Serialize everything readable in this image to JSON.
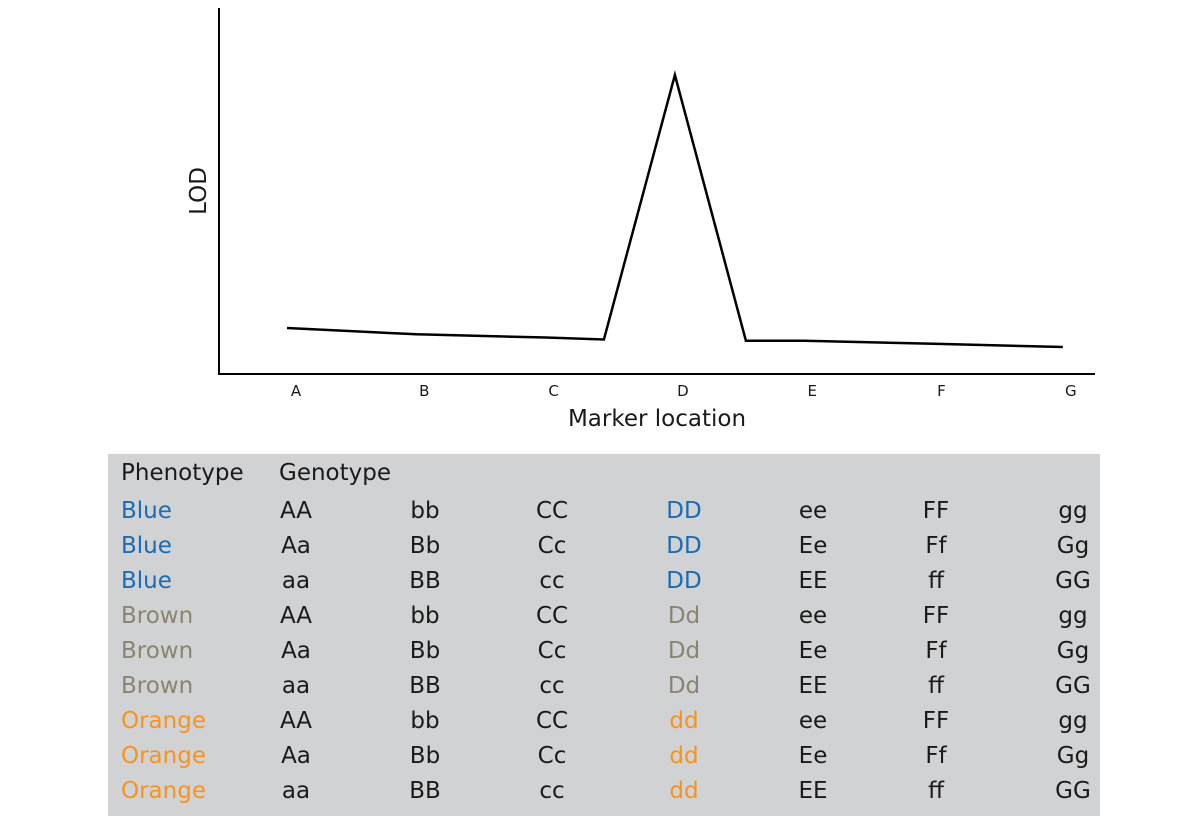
{
  "chart_data": {
    "type": "line",
    "xlabel": "Marker location",
    "ylabel": "LOD",
    "categories": [
      "A",
      "B",
      "C",
      "D",
      "E",
      "F",
      "G"
    ],
    "series": [
      {
        "values": [
          0.2,
          0.18,
          0.17,
          1.0,
          0.16,
          0.15,
          0.14
        ]
      }
    ],
    "ylim": [
      0,
      1.1
    ],
    "grid": false,
    "legend": "none"
  },
  "table": {
    "headers": {
      "phenotype": "Phenotype",
      "genotype": "Genotype"
    },
    "colors": {
      "Blue": "#1a6bb5",
      "Brown": "#8a8470",
      "Orange": "#f7931e",
      "default": "#1a1a1a"
    },
    "rows": [
      {
        "phenotype": "Blue",
        "genotypes": [
          "AA",
          "bb",
          "CC",
          "DD",
          "ee",
          "FF",
          "gg"
        ]
      },
      {
        "phenotype": "Blue",
        "genotypes": [
          "Aa",
          "Bb",
          "Cc",
          "DD",
          "Ee",
          "Ff",
          "Gg"
        ]
      },
      {
        "phenotype": "Blue",
        "genotypes": [
          "aa",
          "BB",
          "cc",
          "DD",
          "EE",
          "ff",
          "GG"
        ]
      },
      {
        "phenotype": "Brown",
        "genotypes": [
          "AA",
          "bb",
          "CC",
          "Dd",
          "ee",
          "FF",
          "gg"
        ]
      },
      {
        "phenotype": "Brown",
        "genotypes": [
          "Aa",
          "Bb",
          "Cc",
          "Dd",
          "Ee",
          "Ff",
          "Gg"
        ]
      },
      {
        "phenotype": "Brown",
        "genotypes": [
          "aa",
          "BB",
          "cc",
          "Dd",
          "EE",
          "ff",
          "GG"
        ]
      },
      {
        "phenotype": "Orange",
        "genotypes": [
          "AA",
          "bb",
          "CC",
          "dd",
          "ee",
          "FF",
          "gg"
        ]
      },
      {
        "phenotype": "Orange",
        "genotypes": [
          "Aa",
          "Bb",
          "Cc",
          "dd",
          "Ee",
          "Ff",
          "Gg"
        ]
      },
      {
        "phenotype": "Orange",
        "genotypes": [
          "aa",
          "BB",
          "cc",
          "dd",
          "EE",
          "ff",
          "GG"
        ]
      }
    ]
  }
}
